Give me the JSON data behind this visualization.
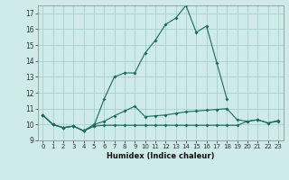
{
  "background_color": "#ceeaea",
  "grid_color": "#aacece",
  "line_color": "#1a6b5a",
  "x_min": -0.5,
  "x_max": 23.5,
  "y_min": 9,
  "y_max": 17.5,
  "xlabel": "Humidex (Indice chaleur)",
  "line1_x": [
    0,
    1,
    2,
    3,
    4,
    5,
    6,
    7,
    8,
    9,
    10,
    11,
    12,
    13,
    14,
    15,
    16,
    17,
    18
  ],
  "line1_y": [
    10.6,
    10.0,
    9.8,
    9.9,
    9.6,
    9.9,
    11.6,
    13.0,
    13.25,
    13.25,
    14.5,
    15.3,
    16.3,
    16.7,
    17.5,
    15.8,
    16.2,
    13.9,
    11.6
  ],
  "line2_x": [
    0,
    1,
    2,
    3,
    4,
    5,
    6,
    7,
    8,
    9,
    10,
    11,
    12,
    13,
    14,
    15,
    16,
    17,
    18,
    19,
    20,
    21,
    22,
    23
  ],
  "line2_y": [
    10.6,
    10.0,
    9.8,
    9.9,
    9.6,
    10.0,
    10.2,
    10.55,
    10.85,
    11.15,
    10.5,
    10.55,
    10.6,
    10.7,
    10.8,
    10.85,
    10.9,
    10.95,
    11.0,
    10.3,
    10.2,
    10.3,
    10.1,
    10.25
  ],
  "line3_x": [
    0,
    1,
    2,
    3,
    4,
    5,
    6,
    7,
    8,
    9,
    10,
    11,
    12,
    13,
    14,
    15,
    16,
    17,
    18,
    19,
    20,
    21,
    22,
    23
  ],
  "line3_y": [
    10.6,
    10.0,
    9.8,
    9.9,
    9.6,
    9.9,
    9.95,
    9.95,
    9.95,
    9.95,
    9.95,
    9.95,
    9.95,
    9.95,
    9.95,
    9.95,
    9.95,
    9.95,
    9.95,
    9.95,
    10.2,
    10.3,
    10.1,
    10.2
  ],
  "yticks": [
    9,
    10,
    11,
    12,
    13,
    14,
    15,
    16,
    17
  ],
  "xticks": [
    0,
    1,
    2,
    3,
    4,
    5,
    6,
    7,
    8,
    9,
    10,
    11,
    12,
    13,
    14,
    15,
    16,
    17,
    18,
    19,
    20,
    21,
    22,
    23
  ]
}
